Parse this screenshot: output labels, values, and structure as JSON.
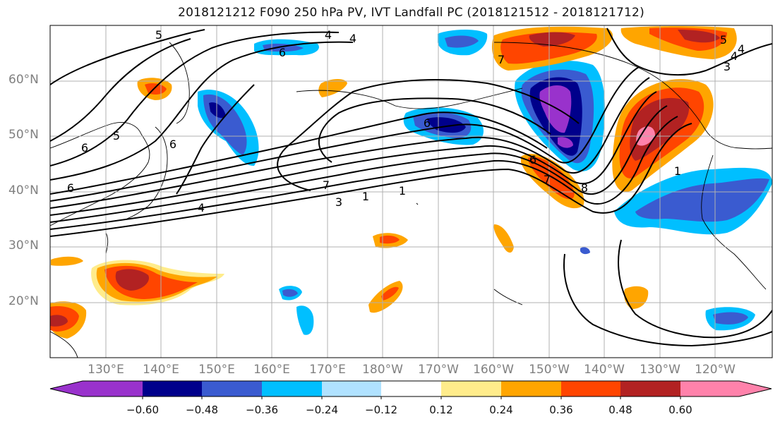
{
  "title": "2018121212 F090 250 hPa PV, IVT Landfall PC (2018121512 - 2018121712)",
  "lat_labels": [
    "60°N",
    "50°N",
    "40°N",
    "30°N",
    "20°N"
  ],
  "lon_labels": [
    "130°E",
    "140°E",
    "150°E",
    "160°E",
    "170°E",
    "180°W",
    "170°W",
    "160°W",
    "150°W",
    "140°W",
    "130°W",
    "120°W"
  ],
  "contour_labels": [
    "5",
    "4",
    "6",
    "5",
    "6",
    "6",
    "4",
    "6",
    "1",
    "3",
    "1",
    "4",
    "7",
    "6",
    "7",
    "8",
    "1",
    "5",
    "3",
    "7",
    "6",
    "4",
    "4"
  ],
  "colorbar": {
    "tick_labels": [
      "−0.60",
      "−0.48",
      "−0.36",
      "−0.24",
      "−0.12",
      "0.12",
      "0.24",
      "0.36",
      "0.48",
      "0.60"
    ],
    "colors": [
      "#9932cc",
      "#00008b",
      "#3a5bd0",
      "#00bfff",
      "#b0e2ff",
      "#ffffff",
      "#ffec8b",
      "#ffa500",
      "#ff4500",
      "#b22222",
      "#ff82ab"
    ]
  }
}
